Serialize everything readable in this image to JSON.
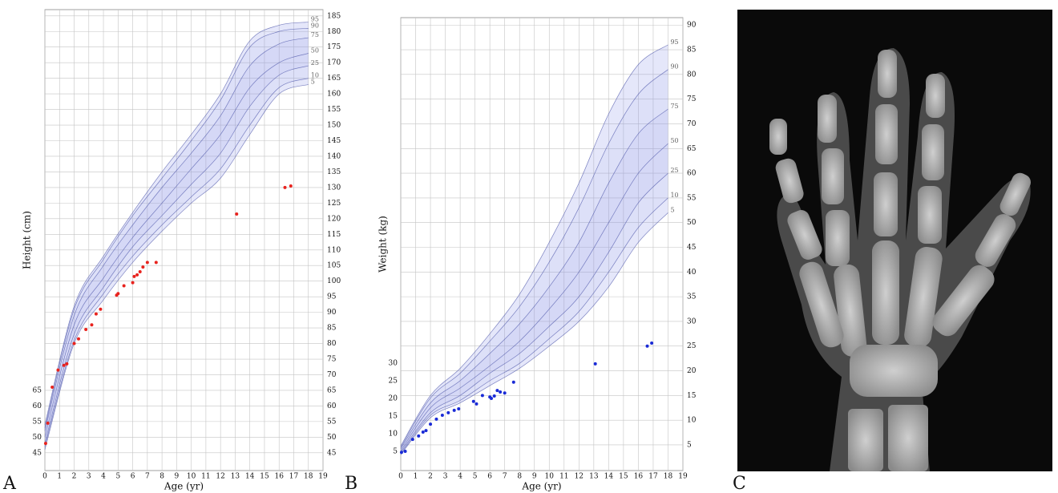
{
  "panel_labels": [
    "A",
    "B",
    "C"
  ],
  "chart_data": [
    {
      "type": "scatter",
      "ylabel": "Height (cm)",
      "xlabel": "Age (yr)",
      "xlim": [
        0,
        19
      ],
      "xticks": [
        0,
        1,
        2,
        3,
        4,
        5,
        6,
        7,
        8,
        9,
        10,
        11,
        12,
        13,
        14,
        15,
        16,
        17,
        18,
        19
      ],
      "ylim": [
        39.3,
        187
      ],
      "yticks": [
        45,
        50,
        55,
        60,
        65,
        70,
        75,
        80,
        85,
        90,
        95,
        100,
        105,
        110,
        115,
        120,
        125,
        130,
        135,
        140,
        145,
        150,
        155,
        160,
        165,
        170,
        175,
        180,
        185
      ],
      "y2lim": [
        39.3,
        187
      ],
      "y2ticks": [
        45,
        50,
        55,
        60,
        65
      ],
      "color": "#e8231e",
      "band_color": "#8a93e6",
      "x": [
        0.05,
        0.2,
        0.5,
        0.9,
        1.3,
        1.5,
        2.0,
        2.3,
        2.8,
        3.2,
        3.5,
        3.8,
        4.9,
        5.0,
        5.4,
        6.0,
        6.1,
        6.3,
        6.5,
        6.7,
        7.0,
        7.6,
        13.1,
        16.4,
        16.8
      ],
      "values": [
        48,
        54.5,
        66,
        71.5,
        73,
        73.5,
        80,
        81.5,
        84.5,
        86,
        89.5,
        91,
        95.5,
        96,
        98.5,
        99.5,
        101.5,
        102,
        103,
        104.5,
        106,
        106,
        121.5,
        130,
        130.5
      ],
      "percentile_x": [
        0,
        2,
        4,
        6,
        8,
        10,
        12,
        14,
        16,
        18
      ],
      "series": [
        {
          "name": "5",
          "values": [
            46,
            80,
            94,
            106,
            116,
            125,
            133,
            147,
            160,
            163
          ]
        },
        {
          "name": "10",
          "values": [
            47,
            81,
            96,
            108,
            118,
            127,
            136,
            150,
            162,
            165
          ]
        },
        {
          "name": "25",
          "values": [
            48,
            83,
            98,
            111,
            121,
            131,
            141,
            156,
            166,
            169
          ]
        },
        {
          "name": "50",
          "values": [
            50,
            86,
            101,
            114,
            125,
            136,
            147,
            162,
            170,
            173
          ]
        },
        {
          "name": "75",
          "values": [
            52,
            89,
            105,
            118,
            130,
            141,
            153,
            169,
            176,
            178
          ]
        },
        {
          "name": "90",
          "values": [
            53,
            91,
            107,
            121,
            133,
            145,
            158,
            175,
            180,
            181
          ]
        },
        {
          "name": "95",
          "values": [
            54,
            92,
            108,
            122,
            135,
            147,
            160,
            177,
            182,
            183
          ]
        }
      ]
    },
    {
      "type": "scatter",
      "ylabel": "Weight (kg)",
      "xlabel": "Age (yr)",
      "xlim": [
        0,
        19
      ],
      "xticks": [
        0,
        1,
        2,
        3,
        4,
        5,
        6,
        7,
        8,
        9,
        10,
        11,
        12,
        13,
        14,
        15,
        16,
        17,
        18,
        19
      ],
      "ylim": [
        -0.2,
        91.5
      ],
      "yticks": [
        5,
        10,
        15,
        20,
        25,
        30,
        35,
        40,
        45,
        50,
        55,
        60,
        65,
        70,
        75,
        80,
        85,
        90
      ],
      "y2lim": [
        -0.5,
        128
      ],
      "y2ticks": [
        5,
        10,
        15,
        20,
        25,
        30
      ],
      "color": "#1a2bd6",
      "band_color": "#8a93e6",
      "x": [
        0.05,
        0.3,
        0.8,
        1.2,
        1.5,
        1.7,
        2.0,
        2.4,
        2.8,
        3.2,
        3.6,
        3.9,
        4.9,
        5.1,
        5.5,
        6.0,
        6.1,
        6.3,
        6.5,
        6.7,
        7.0,
        7.6,
        13.1,
        16.6,
        16.9
      ],
      "values": [
        3.5,
        3.7,
        6.1,
        6.8,
        7.6,
        7.9,
        9.2,
        10.2,
        11,
        11.5,
        12,
        12.3,
        13.8,
        13.3,
        15,
        14.7,
        14.4,
        14.9,
        16,
        15.7,
        15.5,
        17.7,
        21.4,
        25,
        25.6
      ],
      "percentile_x": [
        0,
        2,
        4,
        6,
        8,
        10,
        12,
        14,
        16,
        18
      ],
      "series": [
        {
          "name": "5",
          "values": [
            3,
            10.5,
            13.5,
            17,
            20.5,
            25,
            30,
            37,
            46,
            52
          ]
        },
        {
          "name": "10",
          "values": [
            3.2,
            11,
            14,
            18,
            21.5,
            26.5,
            32,
            40,
            49,
            55
          ]
        },
        {
          "name": "25",
          "values": [
            3.5,
            11.5,
            15,
            19.5,
            23.5,
            29,
            35,
            44,
            54,
            60
          ]
        },
        {
          "name": "50",
          "values": [
            3.8,
            12.5,
            16.5,
            21,
            26,
            32.5,
            40,
            50,
            60,
            66
          ]
        },
        {
          "name": "75",
          "values": [
            4.2,
            13.5,
            18,
            23.5,
            29.5,
            37,
            46,
            58,
            68,
            73
          ]
        },
        {
          "name": "90",
          "values": [
            4.5,
            14.5,
            19.5,
            26,
            33,
            42,
            53,
            66,
            76,
            81
          ]
        },
        {
          "name": "95",
          "values": [
            4.8,
            15,
            20.5,
            27.5,
            35.5,
            46,
            58,
            72,
            82,
            86
          ]
        }
      ]
    }
  ]
}
